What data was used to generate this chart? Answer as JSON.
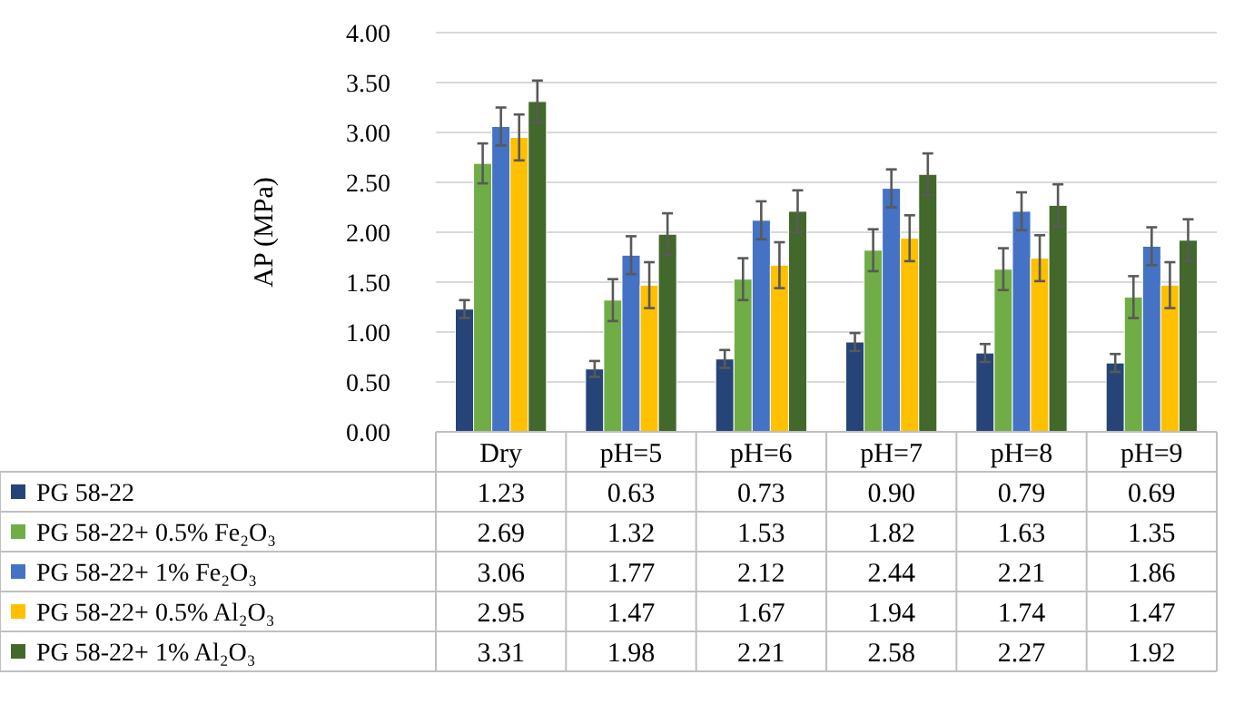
{
  "chart_data": {
    "type": "bar",
    "ylabel": "AP (MPa)",
    "categories": [
      "Dry",
      "pH=5",
      "pH=6",
      "pH=7",
      "pH=8",
      "pH=9"
    ],
    "ylim": [
      0,
      4
    ],
    "yticks": [
      {
        "value": 0,
        "label": "0.00"
      },
      {
        "value": 0.5,
        "label": "0.50"
      },
      {
        "value": 1,
        "label": "1.00"
      },
      {
        "value": 1.5,
        "label": "1.50"
      },
      {
        "value": 2,
        "label": "2.00"
      },
      {
        "value": 2.5,
        "label": "2.50"
      },
      {
        "value": 3,
        "label": "3.00"
      },
      {
        "value": 3.5,
        "label": "3.50"
      },
      {
        "value": 4,
        "label": "4.00"
      }
    ],
    "grid": "y",
    "legend": "bottom",
    "series": [
      {
        "name": "PG 58-22",
        "color": "#264478",
        "values": [
          1.23,
          0.63,
          0.73,
          0.9,
          0.79,
          0.69
        ],
        "value_labels": [
          "1.23",
          "0.63",
          "0.73",
          "0.90",
          "0.79",
          "0.69"
        ],
        "errors": [
          0.09,
          0.08,
          0.09,
          0.09,
          0.09,
          0.09
        ]
      },
      {
        "name": "PG 58-22+ 0.5% Fe₂O₃",
        "color": "#70ad47",
        "values": [
          2.69,
          1.32,
          1.53,
          1.82,
          1.63,
          1.35
        ],
        "value_labels": [
          "2.69",
          "1.32",
          "1.53",
          "1.82",
          "1.63",
          "1.35"
        ],
        "errors": [
          0.2,
          0.21,
          0.21,
          0.21,
          0.21,
          0.21
        ]
      },
      {
        "name": "PG 58-22+ 1% Fe₂O₃",
        "color": "#4472c4",
        "values": [
          3.06,
          1.77,
          2.12,
          2.44,
          2.21,
          1.86
        ],
        "value_labels": [
          "3.06",
          "1.77",
          "2.12",
          "2.44",
          "2.21",
          "1.86"
        ],
        "errors": [
          0.19,
          0.19,
          0.19,
          0.19,
          0.19,
          0.19
        ]
      },
      {
        "name": "PG 58-22+ 0.5% Al₂O₃",
        "color": "#ffc000",
        "values": [
          2.95,
          1.47,
          1.67,
          1.94,
          1.74,
          1.47
        ],
        "value_labels": [
          "2.95",
          "1.47",
          "1.67",
          "1.94",
          "1.74",
          "1.47"
        ],
        "errors": [
          0.23,
          0.23,
          0.23,
          0.23,
          0.23,
          0.23
        ]
      },
      {
        "name": "PG 58-22+ 1% Al₂O₃",
        "color": "#43682b",
        "values": [
          3.31,
          1.98,
          2.21,
          2.58,
          2.27,
          1.92
        ],
        "value_labels": [
          "3.31",
          "1.98",
          "2.21",
          "2.58",
          "2.27",
          "1.92"
        ],
        "errors": [
          0.21,
          0.21,
          0.21,
          0.21,
          0.21,
          0.21
        ]
      }
    ],
    "data_labels": true
  }
}
